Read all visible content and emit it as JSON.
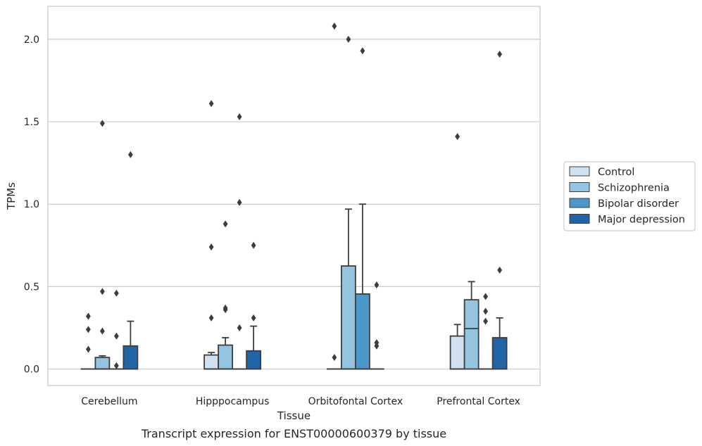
{
  "chart_data": {
    "type": "box",
    "xlabel": "Tissue",
    "ylabel": "TPMs",
    "caption": "Transcript expression for ENST00000600379 by tissue",
    "ylim": [
      -0.1,
      2.2
    ],
    "yticks": [
      "0.0",
      "0.5",
      "1.0",
      "1.5",
      "2.0"
    ],
    "categories": [
      "Cerebellum",
      "Hipppocampus",
      "Orbitofontal Cortex",
      "Prefrontal Cortex"
    ],
    "grid": "horizontal",
    "legend_placement": "right",
    "series": [
      {
        "name": "Control",
        "color": "#d0e1f2",
        "boxes": [
          {
            "q1": 0,
            "median": 0,
            "q3": 0,
            "whisker_low": 0,
            "whisker_high": 0,
            "outliers": [
              0.12,
              0.24,
              0.32
            ]
          },
          {
            "q1": 0,
            "median": 0,
            "q3": 0.085,
            "whisker_low": 0,
            "whisker_high": 0.1,
            "outliers": [
              0.31,
              0.74,
              1.61
            ]
          },
          {
            "q1": 0,
            "median": 0,
            "q3": 0,
            "whisker_low": 0,
            "whisker_high": 0,
            "outliers": [
              0.07,
              2.08
            ]
          },
          {
            "q1": 0,
            "median": 0,
            "q3": 0.2,
            "whisker_low": 0,
            "whisker_high": 0.27,
            "outliers": [
              1.41
            ]
          }
        ]
      },
      {
        "name": "Schizophrenia",
        "color": "#94c4df",
        "boxes": [
          {
            "q1": 0,
            "median": 0,
            "q3": 0.07,
            "whisker_low": 0,
            "whisker_high": 0.08,
            "outliers": [
              0.23,
              0.47,
              1.49
            ]
          },
          {
            "q1": 0,
            "median": 0,
            "q3": 0.145,
            "whisker_low": 0,
            "whisker_high": 0.19,
            "outliers": [
              0.36,
              0.37,
              0.88
            ]
          },
          {
            "q1": 0,
            "median": 0,
            "q3": 0.625,
            "whisker_low": 0,
            "whisker_high": 0.97,
            "outliers": [
              2.0
            ]
          },
          {
            "q1": 0,
            "median": 0.245,
            "q3": 0.42,
            "whisker_low": 0,
            "whisker_high": 0.53,
            "outliers": []
          }
        ]
      },
      {
        "name": "Bipolar disorder",
        "color": "#4a98c9",
        "boxes": [
          {
            "q1": 0,
            "median": 0,
            "q3": 0,
            "whisker_low": 0,
            "whisker_high": 0,
            "outliers": [
              0.02,
              0.2,
              0.46
            ]
          },
          {
            "q1": 0,
            "median": 0,
            "q3": 0,
            "whisker_low": 0,
            "whisker_high": 0,
            "outliers": [
              0.25,
              1.01,
              1.53
            ]
          },
          {
            "q1": 0,
            "median": 0,
            "q3": 0.455,
            "whisker_low": 0,
            "whisker_high": 1.0,
            "outliers": [
              1.93
            ]
          },
          {
            "q1": 0,
            "median": 0,
            "q3": 0,
            "whisker_low": 0,
            "whisker_high": 0,
            "outliers": [
              0.29,
              0.35,
              0.44
            ]
          }
        ]
      },
      {
        "name": "Major depression",
        "color": "#2264a8",
        "boxes": [
          {
            "q1": 0,
            "median": 0,
            "q3": 0.14,
            "whisker_low": 0,
            "whisker_high": 0.29,
            "outliers": [
              1.3
            ]
          },
          {
            "q1": 0,
            "median": 0,
            "q3": 0.11,
            "whisker_low": 0,
            "whisker_high": 0.26,
            "outliers": [
              0.31,
              0.75
            ]
          },
          {
            "q1": 0,
            "median": 0,
            "q3": 0,
            "whisker_low": 0,
            "whisker_high": 0,
            "outliers": [
              0.14,
              0.16,
              0.51
            ]
          },
          {
            "q1": 0,
            "median": 0,
            "q3": 0.19,
            "whisker_low": 0,
            "whisker_high": 0.31,
            "outliers": [
              0.6,
              1.91
            ]
          }
        ]
      }
    ]
  }
}
